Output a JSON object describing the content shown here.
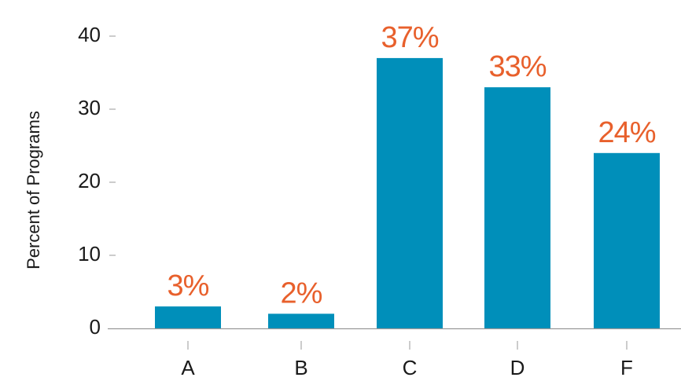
{
  "chart_data": {
    "type": "bar",
    "title": "",
    "xlabel": "",
    "ylabel": "Percent of Programs",
    "categories": [
      "A",
      "B",
      "C",
      "D",
      "F"
    ],
    "values": [
      3,
      2,
      37,
      33,
      24
    ],
    "data_labels": [
      "3%",
      "2%",
      "37%",
      "33%",
      "24%"
    ],
    "yticks": [
      0,
      10,
      20,
      30,
      40
    ],
    "ylim": [
      0,
      40
    ],
    "grid": false,
    "legend": "none",
    "colors": {
      "bar": "#008fba",
      "data_label": "#e8602c",
      "axis": "#999999",
      "text": "#1a1a1a"
    }
  }
}
